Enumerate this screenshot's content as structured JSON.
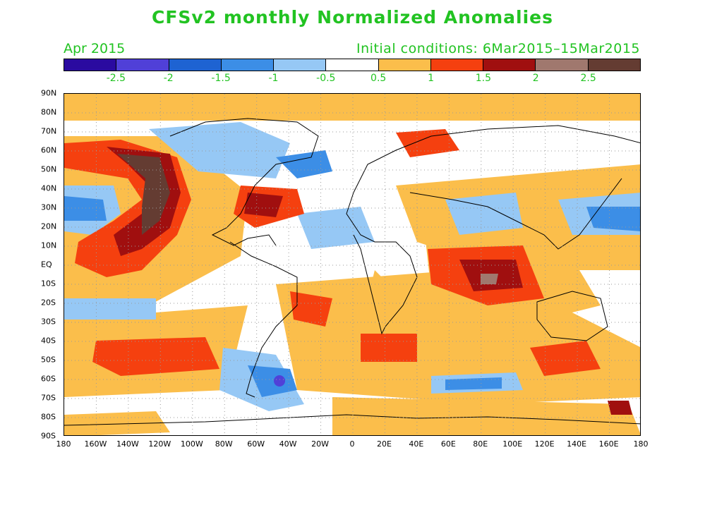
{
  "title": "CFSv2 monthly Normalized Anomalies",
  "month_label": "Apr 2015",
  "initial_conditions": "Initial conditions: 6Mar2015–15Mar2015",
  "colorbar": {
    "colors": [
      "#2a0aa0",
      "#5040d8",
      "#1e63d2",
      "#3c8ee6",
      "#96c8f5",
      "#ffffff",
      "#fbbe4b",
      "#f5400f",
      "#a00f0f",
      "#a0786e",
      "#643c32"
    ],
    "labels": [
      "-2.5",
      "-2",
      "-1.5",
      "-1",
      "-0.5",
      "0.5",
      "1",
      "1.5",
      "2",
      "2.5"
    ]
  },
  "axes": {
    "lat_labels": [
      "90N",
      "80N",
      "70N",
      "60N",
      "50N",
      "40N",
      "30N",
      "20N",
      "10N",
      "EQ",
      "10S",
      "20S",
      "30S",
      "40S",
      "50S",
      "60S",
      "70S",
      "80S",
      "90S"
    ],
    "lon_labels": [
      "180",
      "160W",
      "140W",
      "120W",
      "100W",
      "80W",
      "60W",
      "40W",
      "20W",
      "0",
      "20E",
      "40E",
      "60E",
      "80E",
      "100E",
      "120E",
      "140E",
      "160E",
      "180"
    ]
  }
}
